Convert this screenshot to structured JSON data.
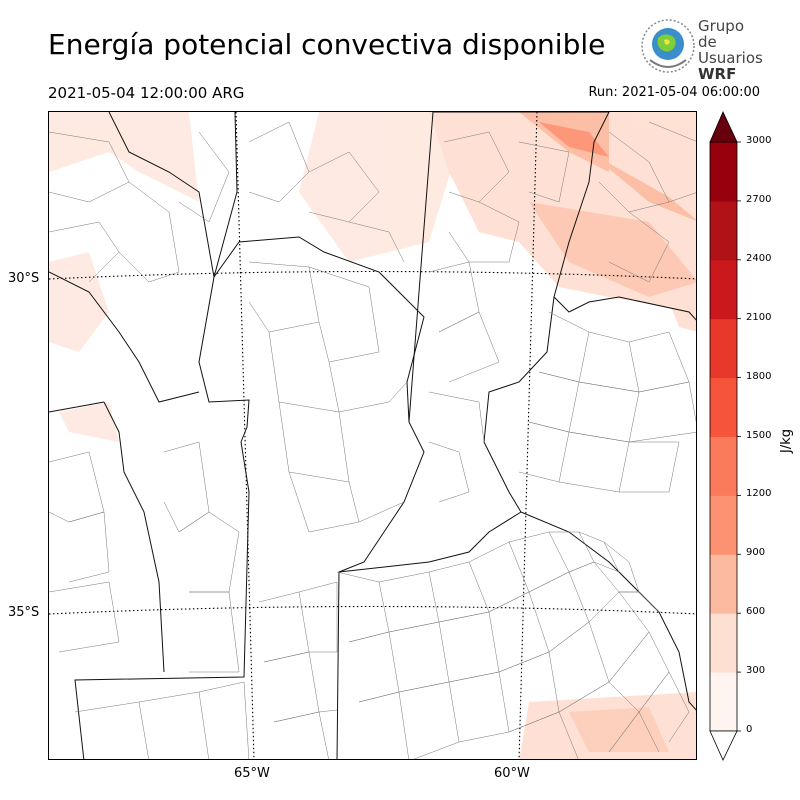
{
  "header": {
    "title": "Energía potencial convectiva disponible",
    "valid_time": "2021-05-04 12:00:00 ARG",
    "run_time": "Run: 2021-05-04 06:00:00"
  },
  "logo": {
    "line1": "Grupo de",
    "line2": "Usuarios",
    "line3": "WRF"
  },
  "map": {
    "lat_labels": [
      "30°S",
      "35°S"
    ],
    "lon_labels": [
      "65°W",
      "60°W"
    ]
  },
  "colorbar": {
    "unit": "J/kg",
    "ticks": [
      "0",
      "300",
      "600",
      "900",
      "1200",
      "1500",
      "1800",
      "2100",
      "2400",
      "2700",
      "3000"
    ],
    "colors": [
      "#fff5f0",
      "#fee0d2",
      "#fcbba1",
      "#fc9272",
      "#fb7a5c",
      "#f6553c",
      "#e8372b",
      "#cb181d",
      "#b11218",
      "#99000d",
      "#67000d"
    ],
    "extend_high_color": "#67000d"
  }
}
